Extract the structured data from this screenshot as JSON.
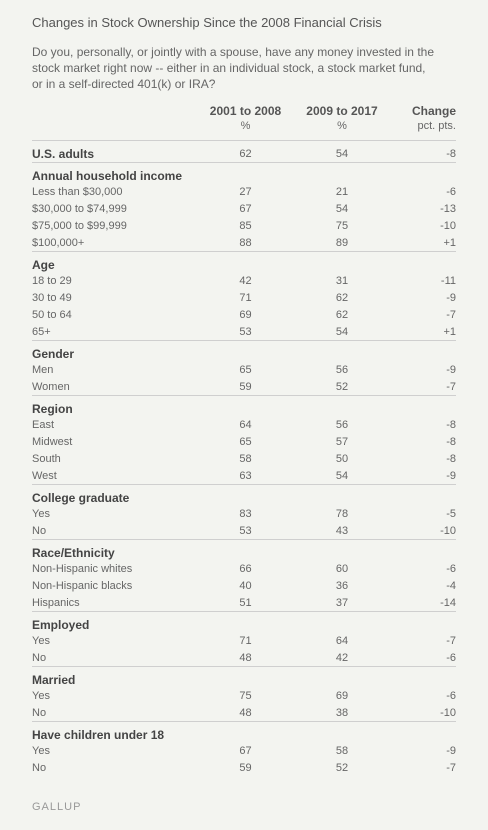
{
  "title": "Changes in Stock Ownership Since the 2008 Financial Crisis",
  "question": "Do you, personally, or jointly with a spouse, have any money invested in the stock market right now -- either in an individual stock, a stock market fund, or in a self-directed 401(k) or IRA?",
  "columns": [
    {
      "label": "2001 to 2008",
      "unit": "%"
    },
    {
      "label": "2009 to 2017",
      "unit": "%"
    },
    {
      "label": "Change",
      "unit": "pct. pts."
    }
  ],
  "groups": [
    {
      "label": "U.S. adults",
      "values": [
        "62",
        "54",
        "-8"
      ],
      "rows": []
    },
    {
      "label": "Annual household income",
      "rows": [
        {
          "label": "Less than $30,000",
          "values": [
            "27",
            "21",
            "-6"
          ]
        },
        {
          "label": "$30,000 to $74,999",
          "values": [
            "67",
            "54",
            "-13"
          ]
        },
        {
          "label": "$75,000 to $99,999",
          "values": [
            "85",
            "75",
            "-10"
          ]
        },
        {
          "label": "$100,000+",
          "values": [
            "88",
            "89",
            "+1"
          ]
        }
      ]
    },
    {
      "label": "Age",
      "rows": [
        {
          "label": "18 to 29",
          "values": [
            "42",
            "31",
            "-11"
          ]
        },
        {
          "label": "30 to 49",
          "values": [
            "71",
            "62",
            "-9"
          ]
        },
        {
          "label": "50 to 64",
          "values": [
            "69",
            "62",
            "-7"
          ]
        },
        {
          "label": "65+",
          "values": [
            "53",
            "54",
            "+1"
          ]
        }
      ]
    },
    {
      "label": "Gender",
      "rows": [
        {
          "label": "Men",
          "values": [
            "65",
            "56",
            "-9"
          ]
        },
        {
          "label": "Women",
          "values": [
            "59",
            "52",
            "-7"
          ]
        }
      ]
    },
    {
      "label": "Region",
      "rows": [
        {
          "label": "East",
          "values": [
            "64",
            "56",
            "-8"
          ]
        },
        {
          "label": "Midwest",
          "values": [
            "65",
            "57",
            "-8"
          ]
        },
        {
          "label": "South",
          "values": [
            "58",
            "50",
            "-8"
          ]
        },
        {
          "label": "West",
          "values": [
            "63",
            "54",
            "-9"
          ]
        }
      ]
    },
    {
      "label": "College graduate",
      "rows": [
        {
          "label": "Yes",
          "values": [
            "83",
            "78",
            "-5"
          ]
        },
        {
          "label": "No",
          "values": [
            "53",
            "43",
            "-10"
          ]
        }
      ]
    },
    {
      "label": "Race/Ethnicity",
      "rows": [
        {
          "label": "Non-Hispanic whites",
          "values": [
            "66",
            "60",
            "-6"
          ]
        },
        {
          "label": "Non-Hispanic blacks",
          "values": [
            "40",
            "36",
            "-4"
          ]
        },
        {
          "label": "Hispanics",
          "values": [
            "51",
            "37",
            "-14"
          ]
        }
      ]
    },
    {
      "label": "Employed",
      "rows": [
        {
          "label": "Yes",
          "values": [
            "71",
            "64",
            "-7"
          ]
        },
        {
          "label": "No",
          "values": [
            "48",
            "42",
            "-6"
          ]
        }
      ]
    },
    {
      "label": "Married",
      "rows": [
        {
          "label": "Yes",
          "values": [
            "75",
            "69",
            "-6"
          ]
        },
        {
          "label": "No",
          "values": [
            "48",
            "38",
            "-10"
          ]
        }
      ]
    },
    {
      "label": "Have children under 18",
      "rows": [
        {
          "label": "Yes",
          "values": [
            "67",
            "58",
            "-9"
          ]
        },
        {
          "label": "No",
          "values": [
            "59",
            "52",
            "-7"
          ]
        }
      ]
    }
  ],
  "source": "GALLUP"
}
